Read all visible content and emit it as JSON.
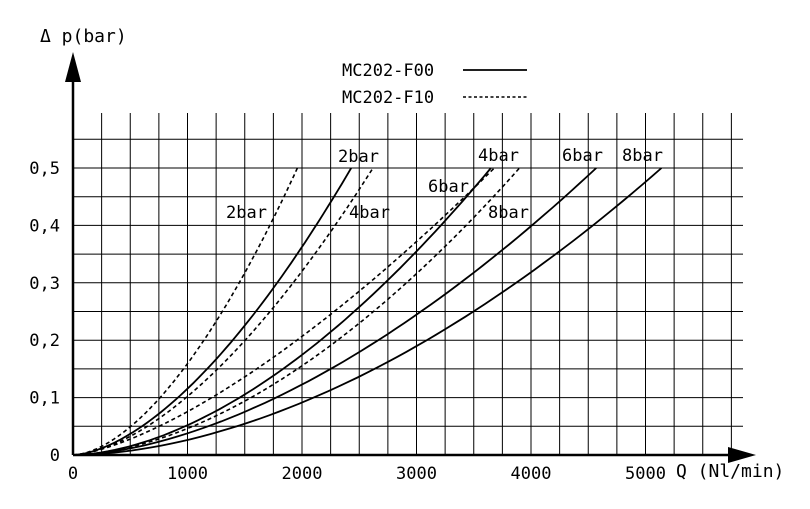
{
  "chart_data": {
    "type": "line",
    "ylabel": "Δ p(bar)",
    "xlabel": "Q (Nl/min)",
    "xlim": [
      0,
      6000
    ],
    "ylim": [
      0,
      0.5
    ],
    "x_ticks": [
      0,
      1000,
      2000,
      3000,
      4000,
      5000
    ],
    "x_tick_labels": [
      "0",
      "1000",
      "2000",
      "3000",
      "4000",
      "5000"
    ],
    "y_ticks": [
      0,
      0.1,
      0.2,
      0.3,
      0.4,
      0.5
    ],
    "y_tick_labels": [
      "0",
      "0,1",
      "0,2",
      "0,3",
      "0,4",
      "0,5"
    ],
    "grid": true,
    "legend": {
      "position": "top-center",
      "entries": [
        {
          "label": "MC202-F00",
          "style": "solid"
        },
        {
          "label": "MC202-F10",
          "style": "dashed"
        }
      ]
    },
    "series": [
      {
        "label": "2bar",
        "model": "MC202-F00",
        "style": "solid",
        "x_max": 2430,
        "y_max": 0.5
      },
      {
        "label": "4bar",
        "model": "MC202-F00",
        "style": "solid",
        "x_max": 3650,
        "y_max": 0.5
      },
      {
        "label": "6bar",
        "model": "MC202-F00",
        "style": "solid",
        "x_max": 4570,
        "y_max": 0.5
      },
      {
        "label": "8bar",
        "model": "MC202-F00",
        "style": "solid",
        "x_max": 5140,
        "y_max": 0.5
      },
      {
        "label": "2bar",
        "model": "MC202-F10",
        "style": "dashed",
        "x_max": 1960,
        "y_max": 0.5
      },
      {
        "label": "4bar",
        "model": "MC202-F10",
        "style": "dashed",
        "x_max": 2620,
        "y_max": 0.5
      },
      {
        "label": "6bar",
        "model": "MC202-F10",
        "style": "dashed",
        "x_max": 3680,
        "y_max": 0.5
      },
      {
        "label": "8bar",
        "model": "MC202-F10",
        "style": "dashed",
        "x_max": 3900,
        "y_max": 0.5
      }
    ]
  }
}
